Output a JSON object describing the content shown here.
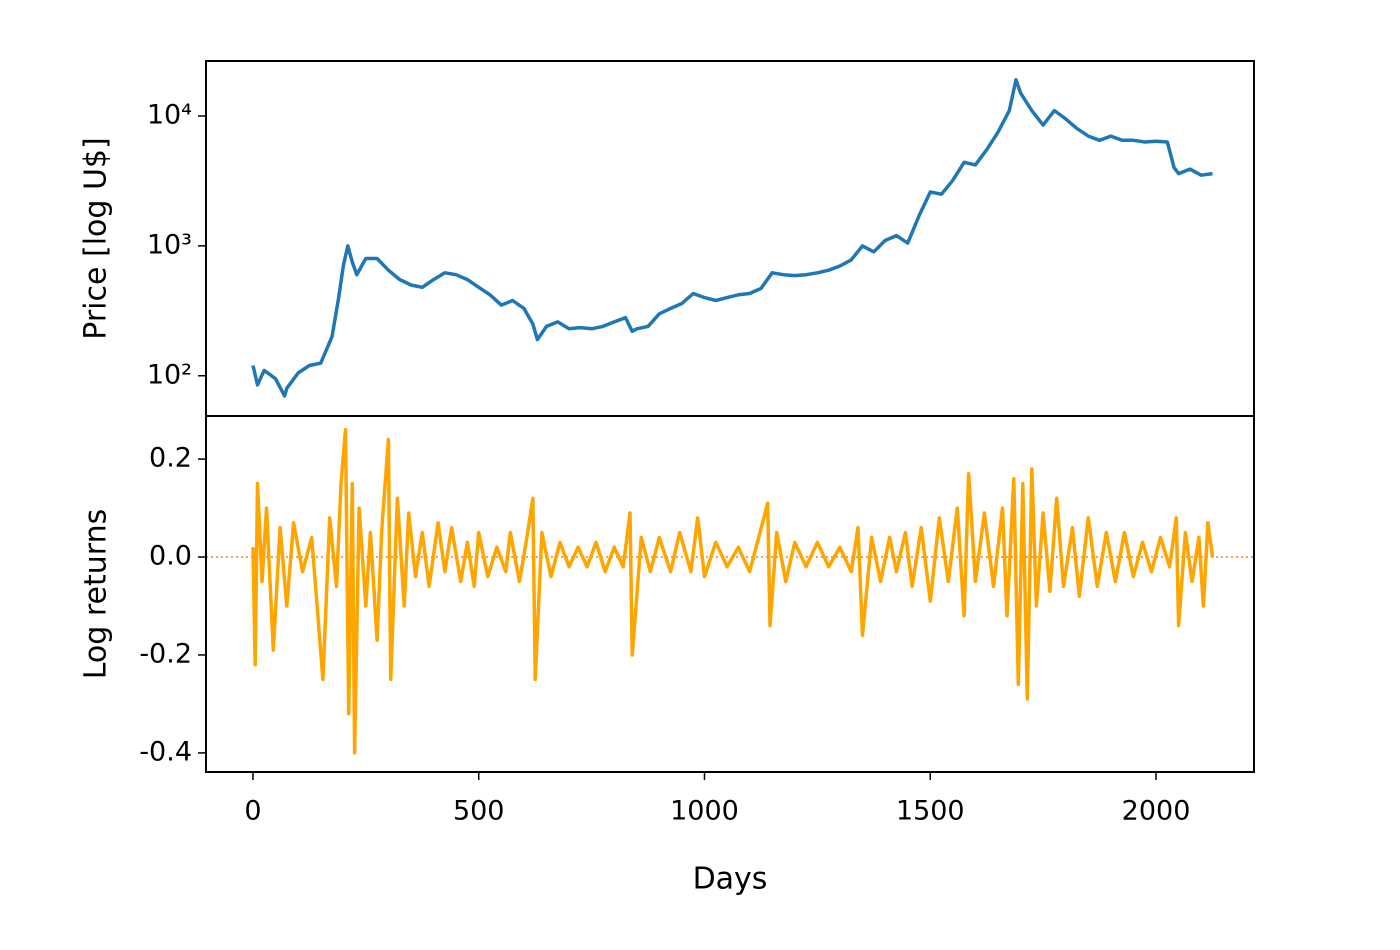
{
  "chart_data": [
    {
      "type": "line",
      "y_label": "Price [log U$]",
      "log_scale": true,
      "xlim": [
        -104,
        2217
      ],
      "ylim": [
        49,
        26500
      ],
      "yticks": [
        {
          "value": 100,
          "label": "10²"
        },
        {
          "value": 1000,
          "label": "10³"
        },
        {
          "value": 10000,
          "label": "10⁴"
        }
      ],
      "x": [
        0,
        10,
        25,
        50,
        70,
        75,
        100,
        125,
        150,
        175,
        190,
        200,
        210,
        220,
        230,
        250,
        275,
        300,
        325,
        350,
        375,
        400,
        425,
        450,
        475,
        500,
        525,
        550,
        575,
        600,
        620,
        630,
        650,
        675,
        700,
        725,
        750,
        775,
        800,
        825,
        840,
        850,
        875,
        900,
        925,
        950,
        975,
        1000,
        1025,
        1050,
        1075,
        1100,
        1125,
        1150,
        1175,
        1200,
        1225,
        1250,
        1275,
        1300,
        1325,
        1350,
        1375,
        1400,
        1425,
        1450,
        1475,
        1500,
        1525,
        1550,
        1575,
        1600,
        1625,
        1650,
        1675,
        1690,
        1700,
        1725,
        1750,
        1775,
        1800,
        1825,
        1850,
        1875,
        1900,
        1925,
        1950,
        1975,
        2000,
        2025,
        2040,
        2050,
        2075,
        2100,
        2125
      ],
      "series": [
        {
          "color": "#1f77b4",
          "values": [
            120,
            85,
            110,
            95,
            70,
            80,
            105,
            120,
            125,
            200,
            400,
            700,
            1000,
            750,
            600,
            800,
            800,
            650,
            550,
            500,
            480,
            550,
            620,
            600,
            550,
            480,
            420,
            350,
            380,
            330,
            250,
            190,
            240,
            260,
            230,
            235,
            230,
            240,
            260,
            280,
            220,
            230,
            240,
            300,
            330,
            360,
            430,
            400,
            380,
            400,
            420,
            430,
            470,
            620,
            600,
            590,
            600,
            620,
            650,
            700,
            780,
            1000,
            900,
            1100,
            1200,
            1050,
            1700,
            2600,
            2500,
            3200,
            4400,
            4200,
            5500,
            7500,
            11000,
            19000,
            15000,
            11000,
            8500,
            11000,
            9500,
            8000,
            7000,
            6500,
            7000,
            6500,
            6500,
            6300,
            6400,
            6300,
            4000,
            3600,
            3900,
            3500,
            3600
          ]
        }
      ]
    },
    {
      "type": "line",
      "y_label": "Log returns",
      "x_label": "Days",
      "xlim": [
        -104,
        2217
      ],
      "ylim": [
        -0.439,
        0.288
      ],
      "xticks": [
        0,
        500,
        1000,
        1500,
        2000
      ],
      "yticks": [
        -0.4,
        -0.2,
        {
          "value": 0,
          "label": "0.0"
        },
        0.2
      ],
      "reference_line": 0,
      "reference_color": "#ff7f0e",
      "x": [
        0,
        5,
        10,
        20,
        30,
        45,
        60,
        75,
        90,
        110,
        130,
        155,
        170,
        185,
        195,
        205,
        212,
        220,
        225,
        235,
        250,
        260,
        275,
        285,
        300,
        305,
        320,
        335,
        345,
        360,
        375,
        390,
        410,
        425,
        440,
        460,
        475,
        490,
        500,
        520,
        540,
        560,
        570,
        590,
        605,
        620,
        625,
        640,
        660,
        680,
        700,
        720,
        740,
        760,
        780,
        800,
        820,
        835,
        840,
        860,
        880,
        900,
        925,
        945,
        970,
        985,
        1000,
        1025,
        1050,
        1075,
        1100,
        1120,
        1140,
        1145,
        1160,
        1180,
        1200,
        1225,
        1250,
        1275,
        1300,
        1325,
        1340,
        1350,
        1370,
        1390,
        1410,
        1425,
        1445,
        1460,
        1480,
        1500,
        1520,
        1540,
        1560,
        1575,
        1585,
        1600,
        1620,
        1640,
        1660,
        1670,
        1685,
        1695,
        1705,
        1715,
        1725,
        1735,
        1750,
        1765,
        1780,
        1795,
        1815,
        1830,
        1850,
        1870,
        1890,
        1910,
        1930,
        1950,
        1970,
        1990,
        2010,
        2030,
        2045,
        2050,
        2065,
        2080,
        2095,
        2105,
        2115,
        2125
      ],
      "series": [
        {
          "color": "#ffa500",
          "values": [
            0.02,
            -0.22,
            0.15,
            -0.05,
            0.1,
            -0.19,
            0.06,
            -0.1,
            0.07,
            -0.03,
            0.04,
            -0.25,
            0.08,
            -0.06,
            0.15,
            0.26,
            -0.32,
            0.15,
            -0.4,
            0.1,
            -0.1,
            0.05,
            -0.17,
            0.05,
            0.24,
            -0.25,
            0.12,
            -0.1,
            0.09,
            -0.04,
            0.05,
            -0.06,
            0.07,
            -0.03,
            0.06,
            -0.05,
            0.03,
            -0.06,
            0.05,
            -0.04,
            0.02,
            -0.03,
            0.05,
            -0.05,
            0.03,
            0.12,
            -0.25,
            0.05,
            -0.04,
            0.03,
            -0.02,
            0.02,
            -0.02,
            0.03,
            -0.03,
            0.02,
            -0.02,
            0.09,
            -0.2,
            0.04,
            -0.03,
            0.04,
            -0.03,
            0.05,
            -0.03,
            0.08,
            -0.04,
            0.03,
            -0.02,
            0.02,
            -0.03,
            0.04,
            0.11,
            -0.14,
            0.05,
            -0.05,
            0.03,
            -0.02,
            0.03,
            -0.02,
            0.02,
            -0.03,
            0.06,
            -0.16,
            0.04,
            -0.05,
            0.04,
            -0.03,
            0.05,
            -0.06,
            0.06,
            -0.09,
            0.08,
            -0.05,
            0.1,
            -0.12,
            0.17,
            -0.05,
            0.09,
            -0.06,
            0.1,
            -0.12,
            0.16,
            -0.26,
            0.15,
            -0.29,
            0.18,
            -0.1,
            0.09,
            -0.07,
            0.12,
            -0.06,
            0.06,
            -0.08,
            0.08,
            -0.06,
            0.05,
            -0.05,
            0.05,
            -0.04,
            0.03,
            -0.03,
            0.04,
            -0.02,
            0.08,
            -0.14,
            0.05,
            -0.05,
            0.04,
            -0.1,
            0.07,
            0
          ]
        }
      ]
    }
  ]
}
